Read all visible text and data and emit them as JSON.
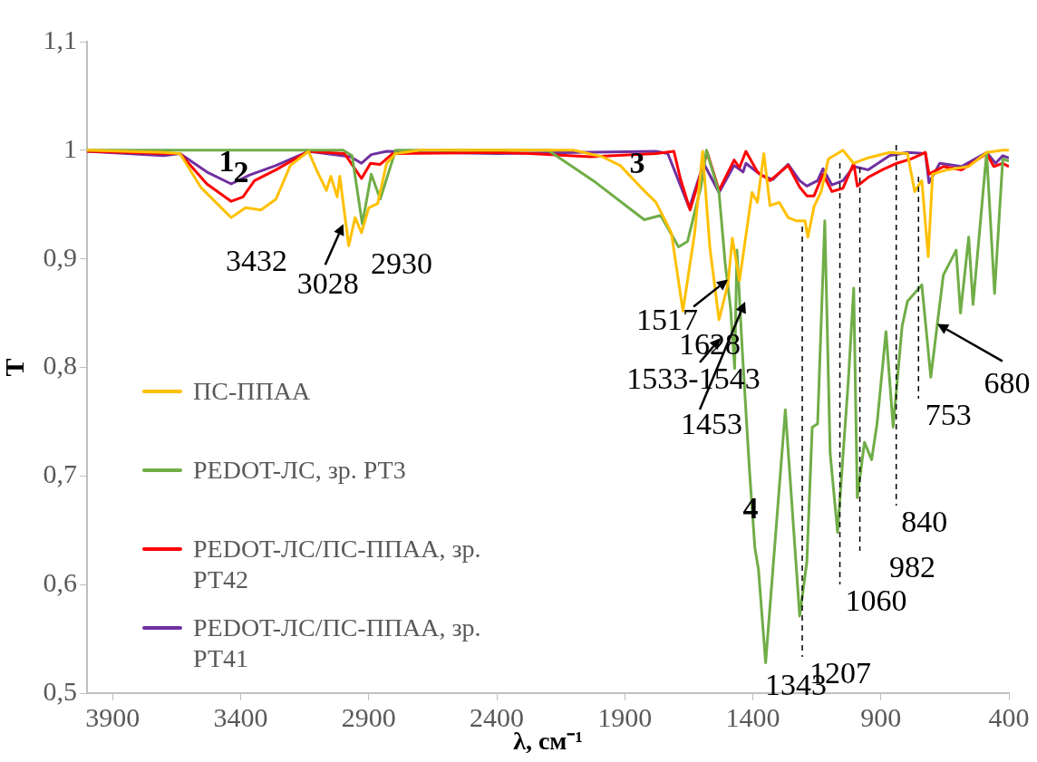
{
  "chart_data": {
    "type": "line",
    "xlabel": "λ, см⁻¹",
    "ylabel": "T",
    "xlim": [
      4000,
      400
    ],
    "xticks": [
      3900,
      3400,
      2900,
      2400,
      1900,
      1400,
      900,
      400
    ],
    "ylim": [
      0.5,
      1.1
    ],
    "yticks": [
      {
        "value": 0.5,
        "label": "0,5"
      },
      {
        "value": 0.6,
        "label": "0,6"
      },
      {
        "value": 0.7,
        "label": "0,7"
      },
      {
        "value": 0.8,
        "label": "0,8"
      },
      {
        "value": 0.9,
        "label": "0,9"
      },
      1,
      {
        "value": 1.1,
        "label": "1,1"
      }
    ],
    "grid": false,
    "legend": "left",
    "marker": "none",
    "line_style": "solid",
    "series": [
      {
        "name": "ПС-ППАА",
        "color": "#ffc000",
        "x": [
          4000,
          3700,
          3637,
          3556,
          3437,
          3381,
          3321,
          3262,
          3206,
          3135,
          3100,
          3065,
          3048,
          3023,
          3013,
          2978,
          2953,
          2928,
          2900,
          2865,
          2830,
          2795,
          2700,
          2100,
          1988,
          1918,
          1838,
          1778,
          1718,
          1673,
          1627,
          1596,
          1568,
          1532,
          1497,
          1480,
          1452,
          1403,
          1382,
          1357,
          1333,
          1297,
          1262,
          1231,
          1196,
          1185,
          1161,
          1133,
          1105,
          1048,
          1006,
          950,
          866,
          796,
          768,
          740,
          715,
          698,
          642,
          557,
          487,
          424,
          400
        ],
        "values": [
          1.0,
          0.998,
          0.997,
          0.966,
          0.938,
          0.947,
          0.945,
          0.955,
          0.986,
          0.999,
          0.98,
          0.963,
          0.976,
          0.957,
          0.976,
          0.912,
          0.938,
          0.924,
          0.947,
          0.951,
          0.988,
          0.997,
          1.0,
          1.0,
          0.994,
          0.986,
          0.966,
          0.952,
          0.924,
          0.852,
          0.924,
          0.999,
          0.911,
          0.844,
          0.877,
          0.919,
          0.88,
          0.961,
          0.952,
          0.997,
          0.949,
          0.952,
          0.938,
          0.935,
          0.935,
          0.92,
          0.948,
          0.962,
          0.992,
          1.0,
          0.988,
          0.993,
          0.998,
          0.997,
          0.962,
          0.972,
          0.902,
          0.978,
          0.982,
          0.985,
          0.998,
          1.0,
          1.0
        ]
      },
      {
        "name": "PEDOT-ЛС, зр. РТ3",
        "color": "#70ad47",
        "x": [
          4000,
          3700,
          3000,
          2965,
          2925,
          2890,
          2855,
          2795,
          2200,
          2023,
          1824,
          1760,
          1690,
          1655,
          1603,
          1581,
          1532,
          1508,
          1487,
          1471,
          1462,
          1441,
          1413,
          1392,
          1378,
          1350,
          1273,
          1217,
          1189,
          1168,
          1147,
          1119,
          1098,
          1069,
          1027,
          1006,
          992,
          964,
          936,
          915,
          880,
          852,
          817,
          796,
          740,
          705,
          656,
          606,
          589,
          557,
          540,
          487,
          456,
          424,
          400
        ],
        "values": [
          1.0,
          1.0,
          1.0,
          0.995,
          0.932,
          0.978,
          0.955,
          1.0,
          1.0,
          0.972,
          0.936,
          0.94,
          0.911,
          0.916,
          0.966,
          1.0,
          0.961,
          0.896,
          0.855,
          0.799,
          0.908,
          0.815,
          0.705,
          0.634,
          0.614,
          0.528,
          0.761,
          0.571,
          0.621,
          0.745,
          0.748,
          0.935,
          0.721,
          0.648,
          0.788,
          0.873,
          0.68,
          0.731,
          0.715,
          0.748,
          0.833,
          0.745,
          0.838,
          0.861,
          0.876,
          0.791,
          0.885,
          0.908,
          0.85,
          0.92,
          0.858,
          0.998,
          0.868,
          0.992,
          0.99
        ]
      },
      {
        "name": "PEDOT-ЛС/ПС-ППАА, зр. РТ42",
        "color": "#ff0000",
        "x": [
          4000,
          3700,
          3637,
          3532,
          3437,
          3391,
          3346,
          3262,
          3135,
          2995,
          2928,
          2893,
          2855,
          2806,
          2400,
          2269,
          2034,
          1778,
          1708,
          1683,
          1645,
          1578,
          1532,
          1473,
          1452,
          1427,
          1382,
          1333,
          1262,
          1217,
          1189,
          1161,
          1126,
          1091,
          1048,
          1006,
          992,
          950,
          894,
          838,
          782,
          726,
          712,
          656,
          585,
          487,
          459,
          424,
          400
        ],
        "values": [
          0.999,
          0.997,
          0.997,
          0.969,
          0.953,
          0.957,
          0.972,
          0.982,
          0.999,
          0.997,
          0.974,
          0.988,
          0.987,
          0.997,
          0.998,
          0.997,
          0.994,
          0.997,
          0.999,
          0.974,
          0.945,
          0.998,
          0.963,
          0.991,
          0.984,
          0.999,
          0.98,
          0.972,
          0.986,
          0.966,
          0.958,
          0.958,
          0.978,
          0.962,
          0.965,
          0.988,
          0.967,
          0.975,
          0.982,
          0.988,
          0.992,
          0.998,
          0.978,
          0.985,
          0.982,
          0.997,
          0.985,
          0.988,
          0.985
        ]
      },
      {
        "name": "PEDOT-ЛС/ПС-ППАА, зр. РТ41",
        "color": "#7030a0",
        "x": [
          4000,
          3700,
          3637,
          3532,
          3437,
          3367,
          3262,
          3135,
          2971,
          2928,
          2890,
          2830,
          2400,
          1778,
          1732,
          1648,
          1592,
          1532,
          1473,
          1438,
          1427,
          1368,
          1322,
          1262,
          1217,
          1189,
          1147,
          1126,
          1091,
          1048,
          1006,
          950,
          866,
          796,
          726,
          712,
          670,
          585,
          487,
          452,
          424,
          400
        ],
        "values": [
          0.999,
          0.995,
          0.997,
          0.98,
          0.969,
          0.977,
          0.986,
          0.999,
          0.994,
          0.988,
          0.996,
          0.999,
          0.997,
          0.999,
          0.997,
          0.947,
          0.988,
          0.961,
          0.986,
          0.98,
          0.988,
          0.977,
          0.973,
          0.987,
          0.972,
          0.967,
          0.972,
          0.983,
          0.968,
          0.972,
          0.985,
          0.982,
          0.995,
          0.998,
          0.997,
          0.97,
          0.988,
          0.985,
          0.998,
          0.988,
          0.995,
          0.993
        ]
      }
    ],
    "ref_lines": [
      {
        "axis": "x",
        "value": 1207,
        "label": "1207",
        "line_style": "dashed"
      },
      {
        "axis": "x",
        "value": 1060,
        "label": "1060",
        "line_style": "dashed"
      },
      {
        "axis": "x",
        "value": 982,
        "label": "982",
        "line_style": "dashed"
      },
      {
        "axis": "x",
        "value": 840,
        "label": "840",
        "line_style": "dashed"
      },
      {
        "axis": "x",
        "value": 753,
        "label": "753",
        "line_style": "dashed"
      }
    ],
    "annotations": [
      "1",
      "2",
      "3",
      "4",
      "3432",
      {
        "text": "3028",
        "x": 2999,
        "y": 0.932
      },
      "2930",
      {
        "text": "1517",
        "x": 1497,
        "y": 0.881
      },
      "1628",
      "1533-1543",
      "1453",
      "1343",
      {
        "text": "680",
        "x": 680,
        "y": 0.84
      }
    ]
  }
}
